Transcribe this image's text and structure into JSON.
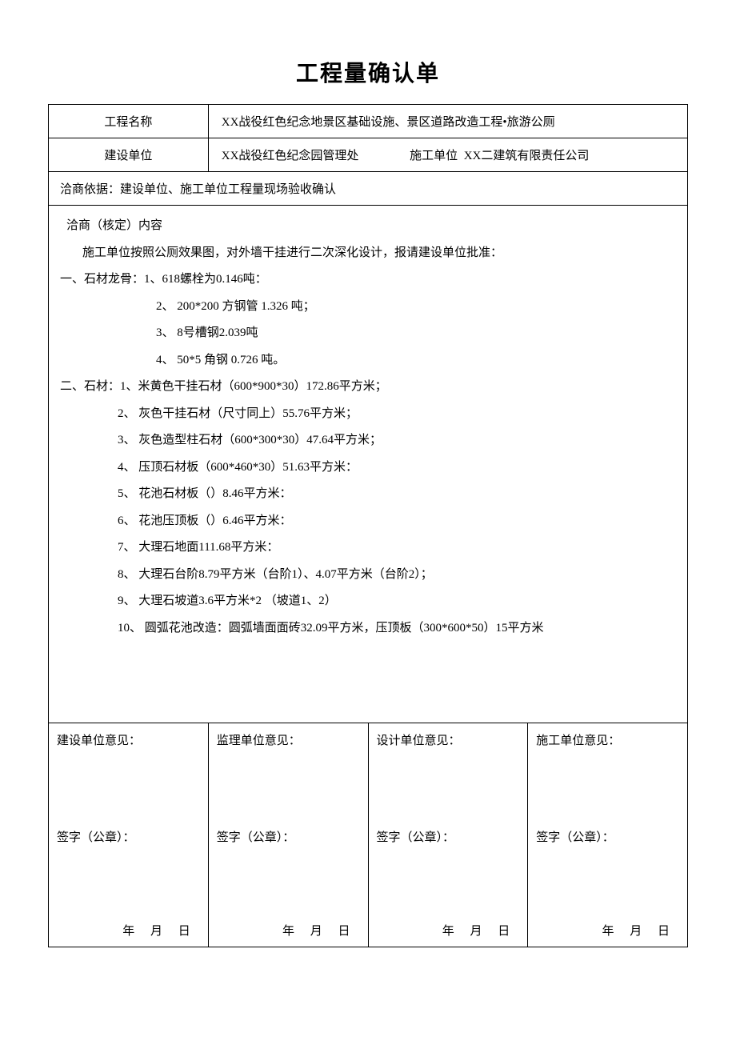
{
  "title": "工程量确认单",
  "row1": {
    "label": "工程名称",
    "value": "XX战役红色纪念地景区基础设施、景区道路改造工程•旅游公厕"
  },
  "row2": {
    "label": "建设单位",
    "owner_value": "XX战役红色纪念园管理处",
    "contractor_label": "施工单位",
    "contractor_value": "XX二建筑有限责任公司"
  },
  "row3": {
    "text": "洽商依据：建设单位、施工单位工程量现场验收确认"
  },
  "content": {
    "heading": "洽商（核定）内容",
    "intro": "施工单位按照公厕效果图，对外墙干挂进行二次深化设计，报请建设单位批准：",
    "section1_head": "一、石材龙骨：1、618螺栓为0.146吨：",
    "s1_items": [
      "2、 200*200 方钢管 1.326 吨；",
      "3、 8号槽钢2.039吨",
      "4、 50*5 角钢 0.726 吨。"
    ],
    "section2_head": "二、石材：1、米黄色干挂石材（600*900*30）172.86平方米；",
    "s2_items": [
      "2、 灰色干挂石材（尺寸同上）55.76平方米；",
      "3、 灰色造型柱石材（600*300*30）47.64平方米；",
      "4、 压顶石材板（600*460*30）51.63平方米：",
      "5、 花池石材板（）8.46平方米：",
      "6、 花池压顶板（）6.46平方米：",
      "7、 大理石地面111.68平方米：",
      "8、 大理石台阶8.79平方米（台阶1）、4.07平方米（台阶2）；",
      "9、 大理石坡道3.6平方米*2 （坡道1、2）",
      "10、 圆弧花池改造：圆弧墙面面砖32.09平方米，压顶板（300*600*50）15平方米"
    ]
  },
  "opinions": {
    "owner": "建设单位意见：",
    "supervisor": "监理单位意见：",
    "designer": "设计单位意见：",
    "contractor": "施工单位意见："
  },
  "sign_label": "签字（公章）：",
  "date_template": "年 月 日",
  "colors": {
    "text": "#000000",
    "background": "#ffffff",
    "border": "#000000"
  },
  "typography": {
    "title_fontsize": 28,
    "body_fontsize": 15,
    "font_family": "SimSun"
  }
}
